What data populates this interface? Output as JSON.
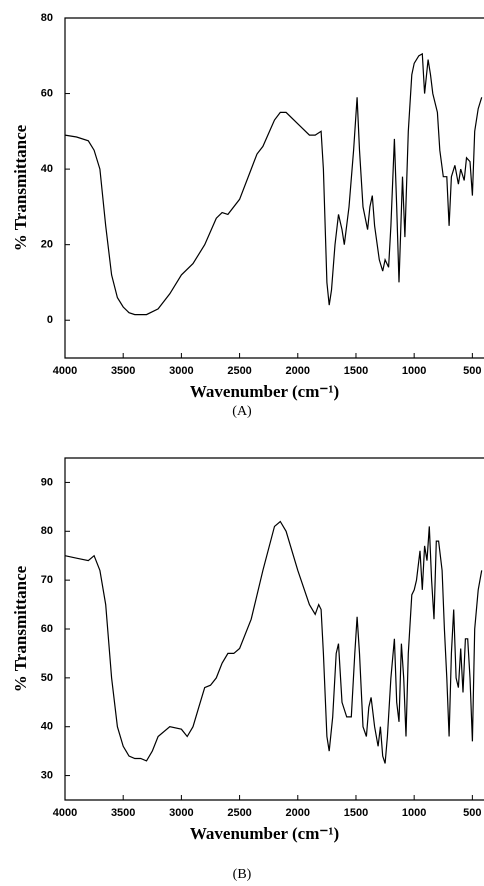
{
  "chart_data": [
    {
      "type": "line",
      "x_label": "Wavenumber (cm⁻¹)",
      "y_label": "% Transmittance",
      "caption": "(A)",
      "xlim": [
        4000,
        400
      ],
      "ylim": [
        -10,
        80
      ],
      "xticks": [
        4000,
        3500,
        3000,
        2500,
        2000,
        1500,
        1000,
        500
      ],
      "yticks": [
        0,
        20,
        40,
        60,
        80
      ],
      "x": [
        4000,
        3900,
        3800,
        3750,
        3700,
        3650,
        3600,
        3550,
        3500,
        3450,
        3400,
        3300,
        3200,
        3100,
        3000,
        2900,
        2800,
        2700,
        2650,
        2600,
        2500,
        2400,
        2350,
        2300,
        2200,
        2150,
        2100,
        2000,
        1900,
        1850,
        1800,
        1780,
        1750,
        1730,
        1710,
        1680,
        1650,
        1620,
        1600,
        1560,
        1520,
        1490,
        1470,
        1440,
        1400,
        1380,
        1360,
        1340,
        1300,
        1270,
        1250,
        1220,
        1200,
        1170,
        1150,
        1130,
        1100,
        1080,
        1050,
        1020,
        1000,
        960,
        930,
        910,
        880,
        860,
        840,
        800,
        780,
        750,
        720,
        700,
        680,
        650,
        620,
        600,
        570,
        550,
        520,
        500,
        480,
        450,
        420
      ],
      "series": [
        {
          "color": "#000000",
          "values": [
            49,
            48.5,
            47.5,
            45,
            40,
            25,
            12,
            6,
            3.5,
            2,
            1.5,
            1.5,
            3,
            7,
            12,
            15,
            20,
            27,
            28.5,
            28,
            32,
            40,
            44,
            46,
            53,
            55,
            55,
            52,
            49,
            49,
            50,
            40,
            10,
            4,
            8,
            20,
            28,
            24,
            20,
            30,
            45,
            59,
            45,
            30,
            24,
            30,
            33,
            25,
            16,
            13,
            16,
            14,
            25,
            48,
            30,
            10,
            38,
            22,
            50,
            65,
            68,
            70,
            70.5,
            60,
            69,
            65,
            60,
            55,
            45,
            38,
            38,
            25,
            38,
            41,
            36,
            40,
            37,
            43,
            42,
            33,
            50,
            56,
            59
          ]
        }
      ]
    },
    {
      "type": "line",
      "x_label": "Wavenumber (cm⁻¹)",
      "y_label": "% Transmittance",
      "caption": "(B)",
      "xlim": [
        4000,
        400
      ],
      "ylim": [
        25,
        95
      ],
      "xticks": [
        4000,
        3500,
        3000,
        2500,
        2000,
        1500,
        1000,
        500
      ],
      "yticks": [
        30,
        40,
        50,
        60,
        70,
        80,
        90
      ],
      "x": [
        4000,
        3900,
        3800,
        3750,
        3700,
        3650,
        3600,
        3550,
        3500,
        3450,
        3400,
        3350,
        3300,
        3250,
        3200,
        3100,
        3000,
        2950,
        2900,
        2850,
        2800,
        2750,
        2700,
        2650,
        2600,
        2550,
        2500,
        2400,
        2300,
        2200,
        2150,
        2100,
        2000,
        1900,
        1850,
        1820,
        1800,
        1780,
        1750,
        1730,
        1700,
        1670,
        1650,
        1620,
        1580,
        1540,
        1510,
        1490,
        1470,
        1440,
        1410,
        1390,
        1370,
        1340,
        1310,
        1290,
        1270,
        1250,
        1230,
        1200,
        1170,
        1150,
        1130,
        1110,
        1090,
        1070,
        1050,
        1020,
        1000,
        980,
        950,
        930,
        910,
        890,
        870,
        850,
        830,
        810,
        790,
        760,
        740,
        720,
        700,
        680,
        660,
        640,
        620,
        600,
        580,
        560,
        540,
        520,
        500,
        480,
        450,
        420
      ],
      "series": [
        {
          "color": "#000000",
          "values": [
            75,
            74.5,
            74,
            75,
            72,
            65,
            50,
            40,
            36,
            34,
            33.5,
            33.5,
            33,
            35,
            38,
            40,
            39.5,
            38,
            40,
            44,
            48,
            48.5,
            50,
            53,
            55,
            55,
            56,
            62,
            72,
            81,
            82,
            80,
            72,
            65,
            63,
            65,
            64,
            55,
            38,
            35,
            42,
            55,
            57,
            45,
            42,
            42,
            55,
            62.5,
            55,
            40,
            38,
            44,
            46,
            40,
            36,
            40,
            34,
            32.5,
            38,
            50,
            58,
            45,
            41,
            57,
            50,
            38,
            55,
            67,
            68,
            70,
            76,
            68,
            77,
            74,
            81,
            70,
            62,
            78,
            78,
            72,
            60,
            50,
            38,
            55,
            64,
            50,
            48,
            56,
            47,
            58,
            58,
            50,
            37,
            60,
            68,
            72
          ]
        }
      ]
    }
  ]
}
